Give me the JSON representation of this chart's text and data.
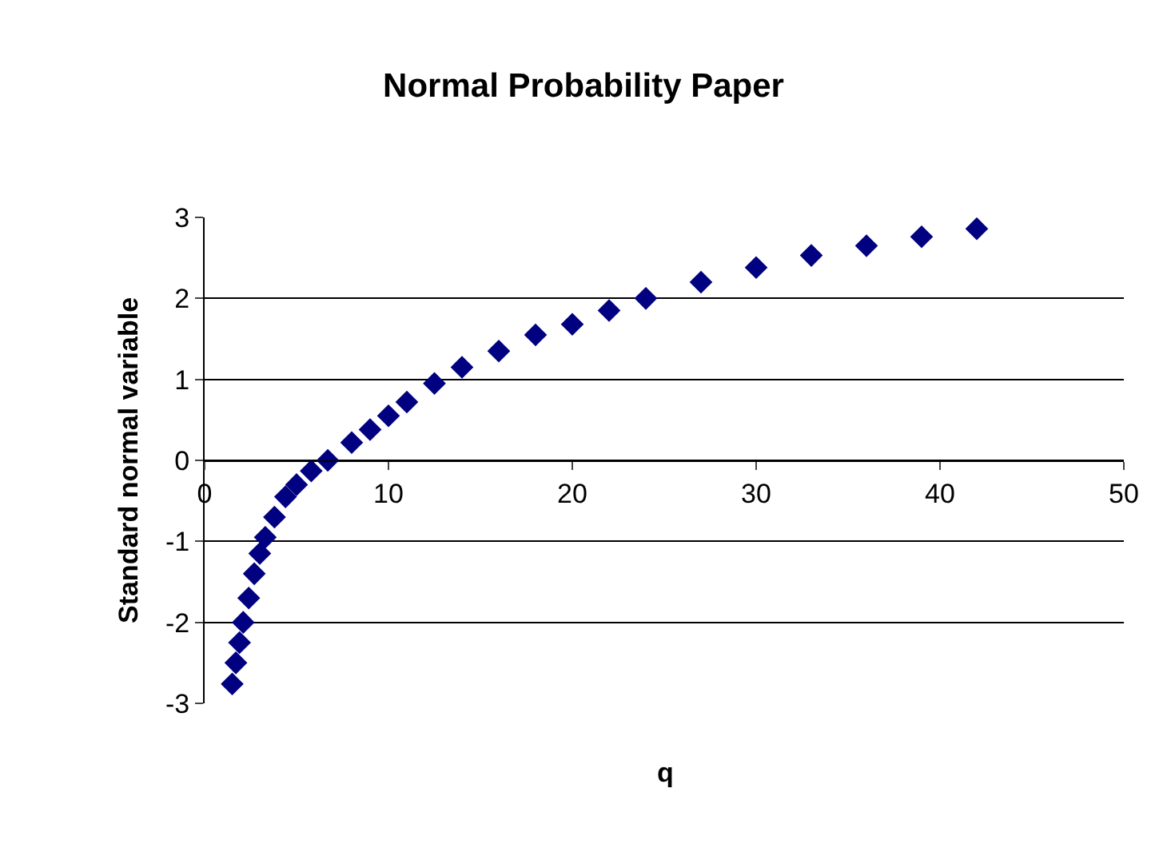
{
  "chart_data": {
    "type": "scatter",
    "title": "Normal Probability Paper",
    "xlabel": "q",
    "ylabel": "Standard normal variable",
    "x": [
      1.5,
      1.7,
      1.9,
      2.1,
      2.4,
      2.7,
      3.0,
      3.3,
      3.8,
      4.4,
      5.0,
      5.8,
      6.7,
      8,
      9,
      10,
      11,
      12.5,
      14,
      16,
      18,
      20,
      22,
      24,
      27,
      30,
      33,
      36,
      39,
      42
    ],
    "series": [
      {
        "color": "#000080",
        "values": [
          -2.76,
          -2.5,
          -2.25,
          -2.0,
          -1.7,
          -1.4,
          -1.15,
          -0.95,
          -0.7,
          -0.45,
          -0.3,
          -0.13,
          0,
          0.22,
          0.38,
          0.55,
          0.72,
          0.95,
          1.15,
          1.35,
          1.55,
          1.68,
          1.85,
          2.0,
          2.2,
          2.38,
          2.53,
          2.65,
          2.76,
          2.86
        ]
      }
    ],
    "xlim": [
      0,
      50
    ],
    "xticks": [
      0,
      10,
      20,
      30,
      40,
      50
    ],
    "ylim": [
      -3,
      3
    ],
    "yticks": [
      -3,
      -2,
      -1,
      0,
      1,
      2,
      3
    ],
    "grid": "y",
    "marker": "diamond"
  }
}
